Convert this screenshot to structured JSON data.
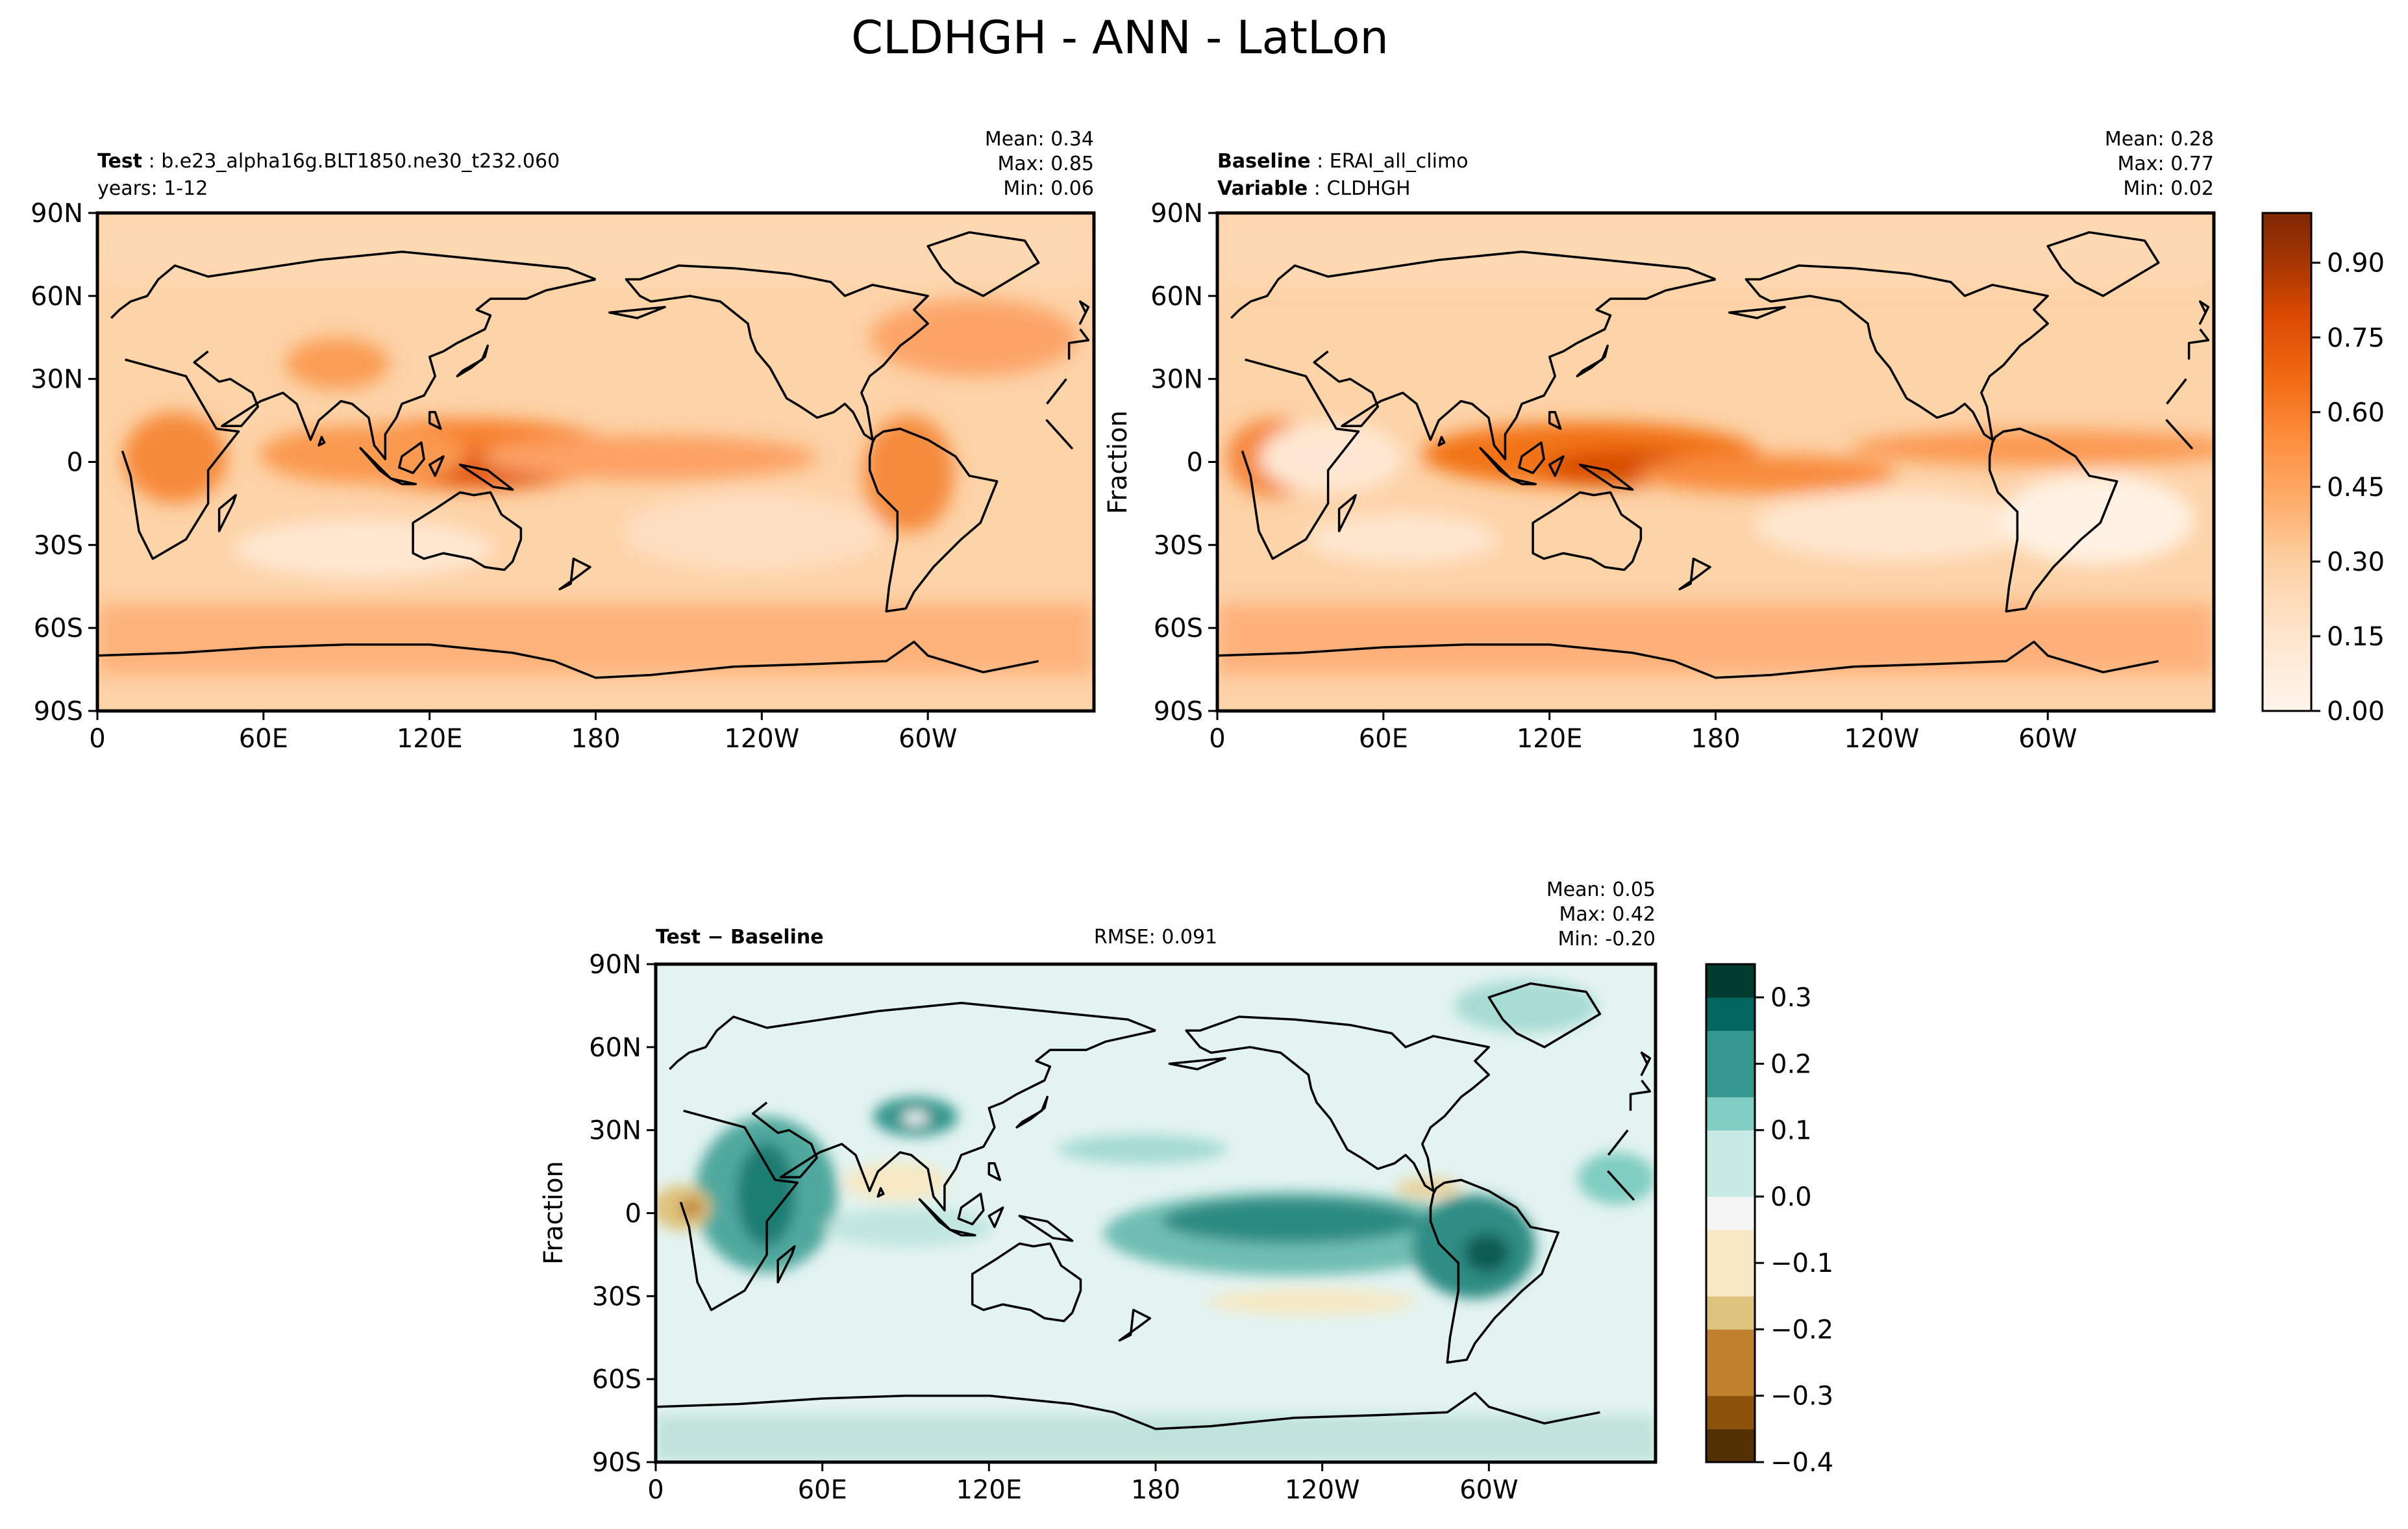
{
  "figure": {
    "title": "CLDHGH - ANN - LatLon"
  },
  "colors": {
    "oranges": [
      "#fff5eb",
      "#fee6ce",
      "#fdd0a2",
      "#fdae6b",
      "#fd8d3c",
      "#f16913",
      "#d94801",
      "#a63603",
      "#7f2704"
    ],
    "brbg": [
      "#543005",
      "#8c510a",
      "#bf812d",
      "#dfc27d",
      "#f6e8c3",
      "#f5f5f5",
      "#c7eae5",
      "#80cdc1",
      "#35978f",
      "#01665e",
      "#003c30"
    ],
    "coast": "#000000"
  },
  "chart_data": [
    {
      "type": "heatmap",
      "panel": "test",
      "label_bold": "Test",
      "label_sep": " : ",
      "label_value": "b.e23_alpha16g.BLT1850.ne30_t232.060",
      "sublabel": "years: 1-12",
      "stats": [
        [
          "Mean:",
          "0.34"
        ],
        [
          "Max:",
          "0.85"
        ],
        [
          "Min:",
          "0.06"
        ]
      ],
      "ylabel": "",
      "xticks": [
        "0",
        "60E",
        "120E",
        "180",
        "120W",
        "60W"
      ],
      "yticks": [
        "90N",
        "60N",
        "30N",
        "0",
        "30S",
        "60S",
        "90S"
      ],
      "x_range": [
        0,
        360
      ],
      "y_range": [
        -90,
        90
      ],
      "field": "CLDHGH",
      "value_range": [
        0.06,
        0.85
      ]
    },
    {
      "type": "heatmap",
      "panel": "baseline",
      "label1_bold": "Baseline",
      "label1_value": "ERAI_all_climo",
      "label2_bold": "Variable",
      "label2_value": "CLDHGH",
      "label_sep": " : ",
      "stats": [
        [
          "Mean:",
          "0.28"
        ],
        [
          "Max:",
          "0.77"
        ],
        [
          "Min:",
          "0.02"
        ]
      ],
      "ylabel": "Fraction",
      "xticks": [
        "0",
        "60E",
        "120E",
        "180",
        "120W",
        "60W"
      ],
      "yticks": [
        "90N",
        "60N",
        "30N",
        "0",
        "30S",
        "60S",
        "90S"
      ],
      "x_range": [
        0,
        360
      ],
      "y_range": [
        -90,
        90
      ],
      "value_range": [
        0.02,
        0.77
      ],
      "colorbar": {
        "ticks": [
          "0.00",
          "0.15",
          "0.30",
          "0.45",
          "0.60",
          "0.75",
          "0.90"
        ],
        "range": [
          0.0,
          1.0
        ]
      }
    },
    {
      "type": "heatmap",
      "panel": "difference",
      "label_bold": "Test − Baseline",
      "rmse": "RMSE: 0.091",
      "stats": [
        [
          "Mean:",
          "0.05"
        ],
        [
          "Max:",
          "0.42"
        ],
        [
          "Min:",
          "-0.20"
        ]
      ],
      "ylabel": "Fraction",
      "xticks": [
        "0",
        "60E",
        "120E",
        "180",
        "120W",
        "60W"
      ],
      "yticks": [
        "90N",
        "60N",
        "30N",
        "0",
        "30S",
        "60S",
        "90S"
      ],
      "x_range": [
        0,
        360
      ],
      "y_range": [
        -90,
        90
      ],
      "value_range": [
        -0.2,
        0.42
      ],
      "colorbar": {
        "ticks": [
          "−0.4",
          "−0.3",
          "−0.2",
          "−0.1",
          "0.0",
          "0.1",
          "0.2",
          "0.3"
        ],
        "range": [
          -0.4,
          0.35
        ]
      }
    }
  ]
}
